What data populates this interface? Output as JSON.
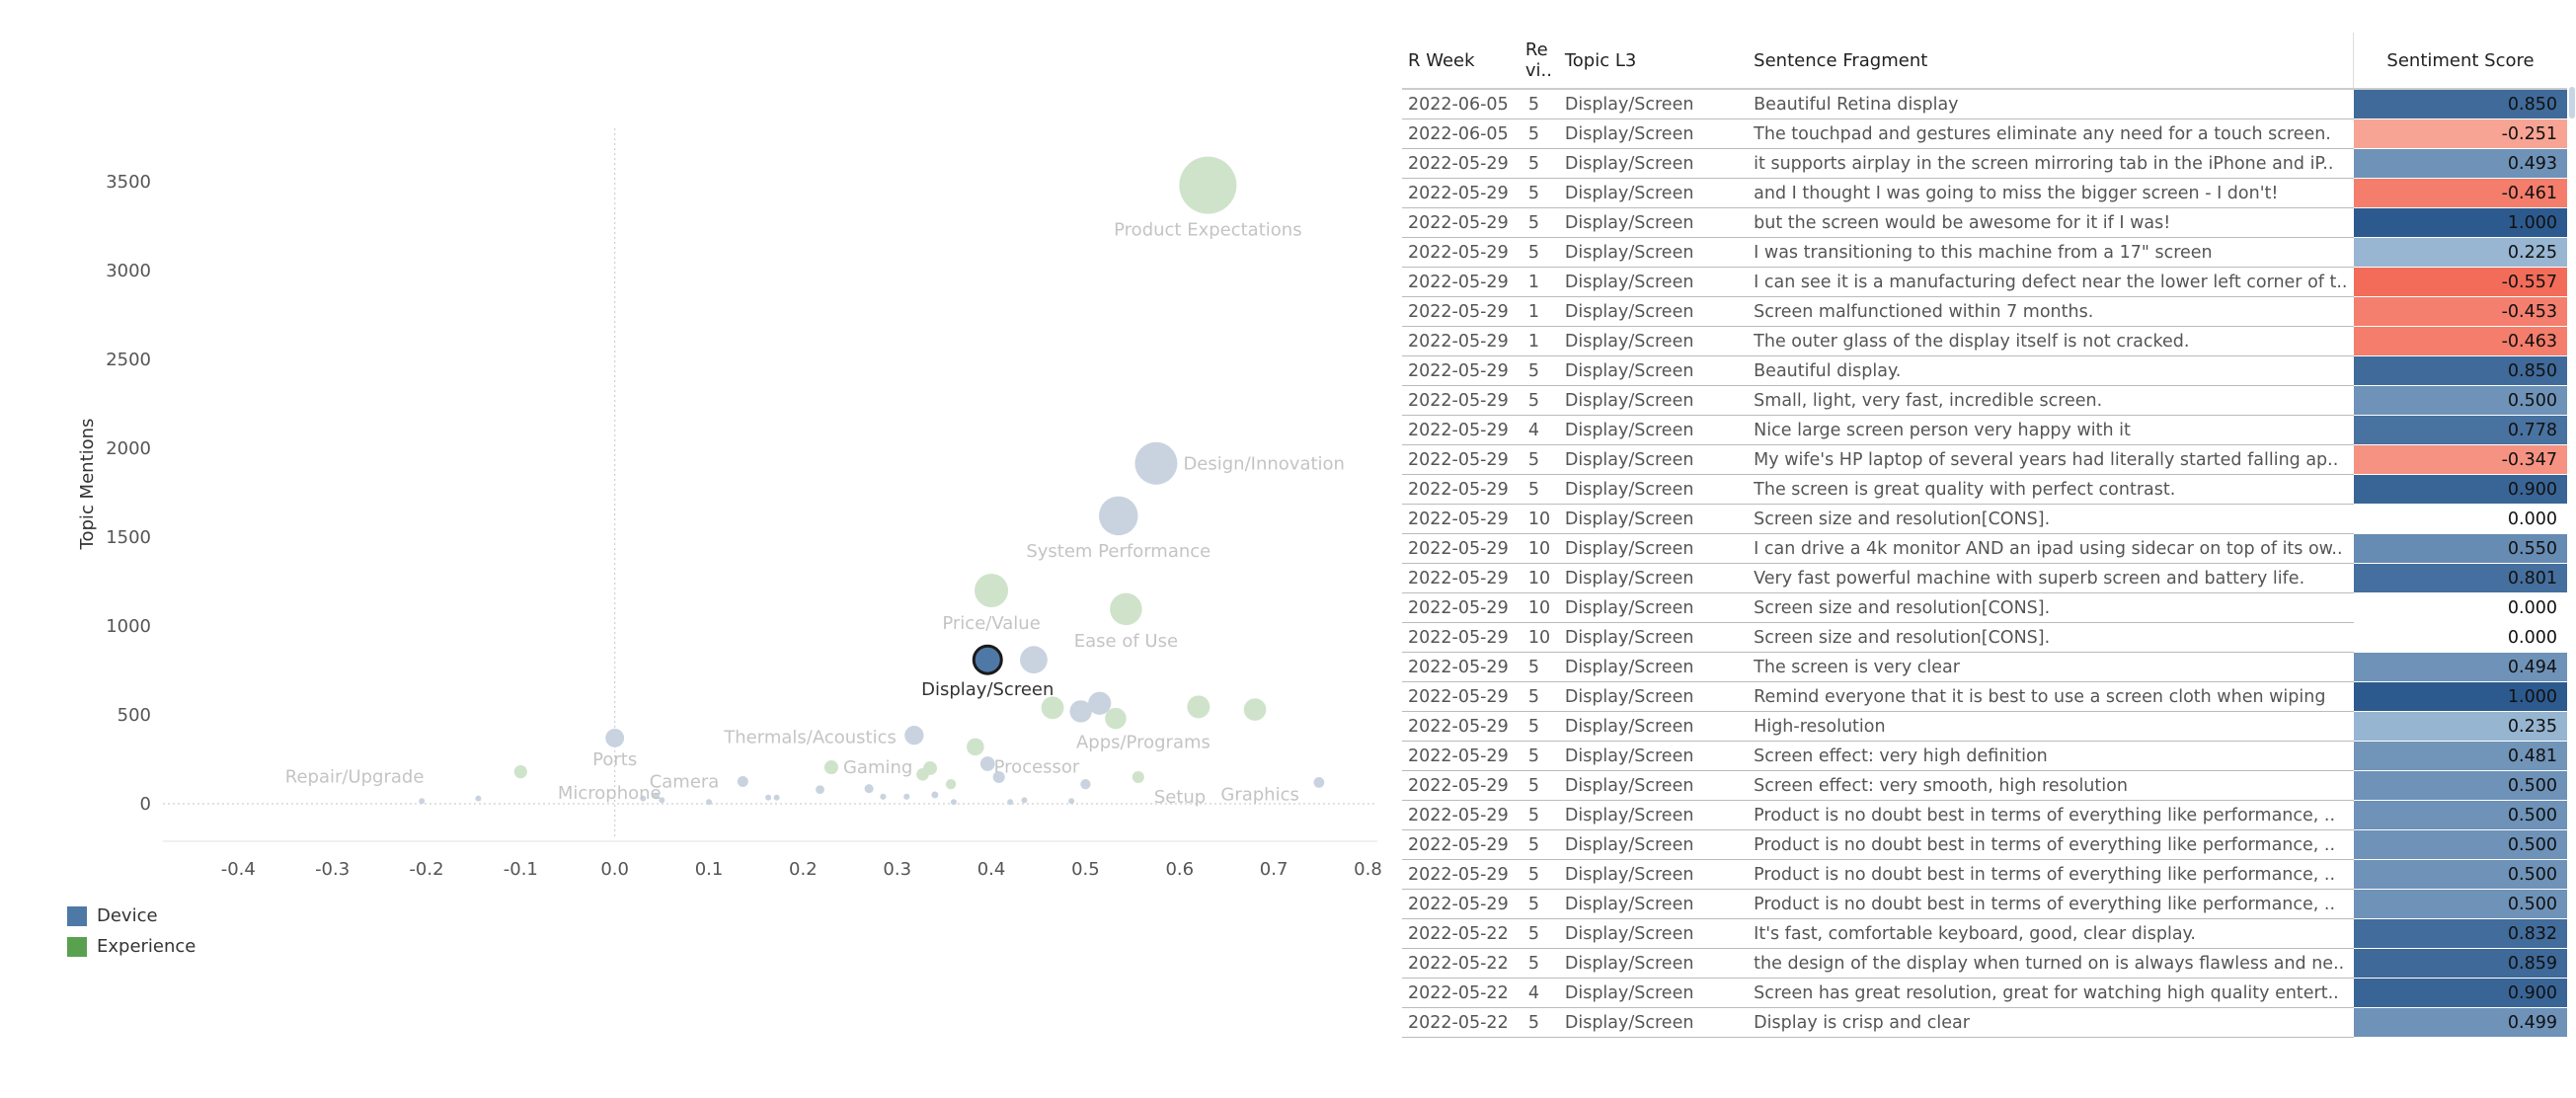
{
  "chart_data": {
    "type": "scatter",
    "title": "",
    "xlabel": "",
    "ylabel": "Topic Mentions",
    "xlim": [
      -0.48,
      0.81
    ],
    "ylim": [
      -200,
      3800
    ],
    "xticks": [
      -0.4,
      -0.3,
      -0.2,
      -0.1,
      0.0,
      0.1,
      0.2,
      0.3,
      0.4,
      0.5,
      0.6,
      0.7,
      0.8
    ],
    "xtick_labels": [
      "-0.4",
      "-0.3",
      "-0.2",
      "-0.1",
      "0.0",
      "0.1",
      "0.2",
      "0.3",
      "0.4",
      "0.5",
      "0.6",
      "0.7",
      "0.8"
    ],
    "yticks": [
      0,
      500,
      1000,
      1500,
      2000,
      2500,
      3000,
      3500
    ],
    "ytick_labels": [
      "0",
      "500",
      "1000",
      "1500",
      "2000",
      "2500",
      "3000",
      "3500"
    ],
    "colors": {
      "device": "#4e79a7",
      "experience": "#59a14f",
      "device_faded": "#c9d3e0",
      "experience_faded": "#cfe3cb",
      "label_faded": "#c4c4c4",
      "label_active": "#333333",
      "axis": "#d0d0d0"
    },
    "legend": [
      {
        "name": "Device",
        "color": "#4e79a7"
      },
      {
        "name": "Experience",
        "color": "#59a14f"
      }
    ],
    "points": [
      {
        "label": "Product Expectations",
        "x": 0.63,
        "y": 3480,
        "size": 3480,
        "group": "experience",
        "labeled": true
      },
      {
        "label": "Design/Innovation",
        "x": 0.575,
        "y": 1915,
        "size": 1915,
        "group": "device",
        "labeled": true
      },
      {
        "label": "System Performance",
        "x": 0.535,
        "y": 1620,
        "size": 1620,
        "group": "device",
        "labeled": true
      },
      {
        "label": "Price/Value",
        "x": 0.4,
        "y": 1200,
        "size": 1200,
        "group": "experience",
        "labeled": true
      },
      {
        "label": "Ease of Use",
        "x": 0.543,
        "y": 1095,
        "size": 1095,
        "group": "experience",
        "labeled": true
      },
      {
        "label": "Display/Screen",
        "x": 0.396,
        "y": 810,
        "size": 810,
        "group": "device",
        "labeled": true,
        "selected": true
      },
      {
        "label": "",
        "x": 0.445,
        "y": 810,
        "size": 800,
        "group": "device",
        "labeled": false
      },
      {
        "label": "",
        "x": 0.515,
        "y": 565,
        "size": 560,
        "group": "device",
        "labeled": false
      },
      {
        "label": "",
        "x": 0.495,
        "y": 520,
        "size": 520,
        "group": "device",
        "labeled": false
      },
      {
        "label": "",
        "x": 0.465,
        "y": 540,
        "size": 540,
        "group": "experience",
        "labeled": false
      },
      {
        "label": "Apps/Programs",
        "x": 0.532,
        "y": 480,
        "size": 480,
        "group": "experience",
        "labeled": true
      },
      {
        "label": "",
        "x": 0.62,
        "y": 545,
        "size": 545,
        "group": "experience",
        "labeled": false
      },
      {
        "label": "",
        "x": 0.68,
        "y": 530,
        "size": 530,
        "group": "experience",
        "labeled": false
      },
      {
        "label": "Thermals/Acoustics",
        "x": 0.318,
        "y": 385,
        "size": 385,
        "group": "device",
        "labeled": true
      },
      {
        "label": "Ports",
        "x": 0.0,
        "y": 370,
        "size": 370,
        "group": "device",
        "labeled": true
      },
      {
        "label": "Processor",
        "x": 0.383,
        "y": 320,
        "size": 320,
        "group": "experience",
        "labeled": true
      },
      {
        "label": "",
        "x": 0.396,
        "y": 225,
        "size": 225,
        "group": "device",
        "labeled": false
      },
      {
        "label": "",
        "x": 0.408,
        "y": 150,
        "size": 150,
        "group": "device",
        "labeled": false
      },
      {
        "label": "Gaming",
        "x": 0.23,
        "y": 205,
        "size": 205,
        "group": "experience",
        "labeled": true
      },
      {
        "label": "",
        "x": 0.335,
        "y": 200,
        "size": 200,
        "group": "experience",
        "labeled": false
      },
      {
        "label": "",
        "x": 0.327,
        "y": 165,
        "size": 165,
        "group": "experience",
        "labeled": false
      },
      {
        "label": "",
        "x": 0.357,
        "y": 110,
        "size": 110,
        "group": "experience",
        "labeled": false
      },
      {
        "label": "Setup",
        "x": 0.556,
        "y": 150,
        "size": 150,
        "group": "experience",
        "labeled": true
      },
      {
        "label": "Graphics",
        "x": 0.748,
        "y": 120,
        "size": 120,
        "group": "device",
        "labeled": true
      },
      {
        "label": "",
        "x": 0.5,
        "y": 110,
        "size": 110,
        "group": "device",
        "labeled": false
      },
      {
        "label": "Camera",
        "x": 0.136,
        "y": 125,
        "size": 125,
        "group": "device",
        "labeled": true
      },
      {
        "label": "",
        "x": -0.1,
        "y": 180,
        "size": 180,
        "group": "experience",
        "labeled": false
      },
      {
        "label": "Repair/Upgrade",
        "x": -0.145,
        "y": 30,
        "size": 30,
        "group": "device",
        "labeled": true
      },
      {
        "label": "Microphone",
        "x": 0.044,
        "y": 45,
        "size": 45,
        "group": "device",
        "labeled": true
      },
      {
        "label": "",
        "x": 0.03,
        "y": 30,
        "size": 30,
        "group": "device",
        "labeled": false
      },
      {
        "label": "",
        "x": 0.05,
        "y": 20,
        "size": 20,
        "group": "device",
        "labeled": false
      },
      {
        "label": "",
        "x": 0.163,
        "y": 35,
        "size": 35,
        "group": "device",
        "labeled": false
      },
      {
        "label": "",
        "x": 0.172,
        "y": 35,
        "size": 35,
        "group": "device",
        "labeled": false
      },
      {
        "label": "",
        "x": 0.218,
        "y": 80,
        "size": 80,
        "group": "device",
        "labeled": false
      },
      {
        "label": "",
        "x": 0.27,
        "y": 85,
        "size": 85,
        "group": "device",
        "labeled": false
      },
      {
        "label": "",
        "x": 0.285,
        "y": 40,
        "size": 40,
        "group": "device",
        "labeled": false
      },
      {
        "label": "",
        "x": 0.31,
        "y": 40,
        "size": 40,
        "group": "device",
        "labeled": false
      },
      {
        "label": "",
        "x": 0.34,
        "y": 50,
        "size": 50,
        "group": "device",
        "labeled": false
      },
      {
        "label": "",
        "x": 0.36,
        "y": 10,
        "size": 10,
        "group": "device",
        "labeled": false
      },
      {
        "label": "",
        "x": 0.42,
        "y": 10,
        "size": 10,
        "group": "device",
        "labeled": false
      },
      {
        "label": "",
        "x": 0.435,
        "y": 20,
        "size": 20,
        "group": "device",
        "labeled": false
      },
      {
        "label": "",
        "x": 0.485,
        "y": 15,
        "size": 15,
        "group": "device",
        "labeled": false
      },
      {
        "label": "",
        "x": -0.205,
        "y": 15,
        "size": 15,
        "group": "device",
        "labeled": false
      },
      {
        "label": "",
        "x": 0.1,
        "y": 10,
        "size": 10,
        "group": "device",
        "labeled": false
      }
    ]
  },
  "table": {
    "columns": [
      "R Week",
      "Re vi..",
      "Topic L3",
      "Sentence Fragment",
      "Sentiment Score"
    ],
    "rows": [
      [
        "2022-06-05",
        "5",
        "Display/Screen",
        "Beautiful Retina display",
        "0.850"
      ],
      [
        "2022-06-05",
        "5",
        "Display/Screen",
        "The touchpad and gestures eliminate any need for a touch screen.",
        "-0.251"
      ],
      [
        "2022-05-29",
        "5",
        "Display/Screen",
        "it supports airplay in the screen mirroring tab in the iPhone and iP..",
        "0.493"
      ],
      [
        "2022-05-29",
        "5",
        "Display/Screen",
        "and I thought I was going to miss the bigger screen - I don't!",
        "-0.461"
      ],
      [
        "2022-05-29",
        "5",
        "Display/Screen",
        "but the screen would be awesome for it if I was!",
        "1.000"
      ],
      [
        "2022-05-29",
        "5",
        "Display/Screen",
        "I was transitioning to this machine from a 17\" screen",
        "0.225"
      ],
      [
        "2022-05-29",
        "1",
        "Display/Screen",
        "I can see it is a manufacturing defect near the lower left corner of t..",
        "-0.557"
      ],
      [
        "2022-05-29",
        "1",
        "Display/Screen",
        "Screen malfunctioned within 7 months.",
        "-0.453"
      ],
      [
        "2022-05-29",
        "1",
        "Display/Screen",
        "The outer glass of the display itself is not cracked.",
        "-0.463"
      ],
      [
        "2022-05-29",
        "5",
        "Display/Screen",
        "Beautiful display.",
        "0.850"
      ],
      [
        "2022-05-29",
        "5",
        "Display/Screen",
        "Small, light, very fast, incredible screen.",
        "0.500"
      ],
      [
        "2022-05-29",
        "4",
        "Display/Screen",
        "Nice large screen person very happy with it",
        "0.778"
      ],
      [
        "2022-05-29",
        "5",
        "Display/Screen",
        "My wife's HP laptop of several years had literally started falling ap..",
        "-0.347"
      ],
      [
        "2022-05-29",
        "5",
        "Display/Screen",
        "The screen is great quality with perfect contrast.",
        "0.900"
      ],
      [
        "2022-05-29",
        "10",
        "Display/Screen",
        "Screen size and resolution[CONS].",
        "0.000"
      ],
      [
        "2022-05-29",
        "10",
        "Display/Screen",
        "I can drive a 4k monitor AND an ipad using sidecar on top of its ow..",
        "0.550"
      ],
      [
        "2022-05-29",
        "10",
        "Display/Screen",
        "Very fast powerful machine with superb screen and battery life.",
        "0.801"
      ],
      [
        "2022-05-29",
        "10",
        "Display/Screen",
        "Screen size and resolution[CONS].",
        "0.000"
      ],
      [
        "2022-05-29",
        "10",
        "Display/Screen",
        "Screen size and resolution[CONS].",
        "0.000"
      ],
      [
        "2022-05-29",
        "5",
        "Display/Screen",
        "The screen is very clear",
        "0.494"
      ],
      [
        "2022-05-29",
        "5",
        "Display/Screen",
        "Remind everyone that it is best to use a screen cloth when wiping",
        "1.000"
      ],
      [
        "2022-05-29",
        "5",
        "Display/Screen",
        "High-resolution",
        "0.235"
      ],
      [
        "2022-05-29",
        "5",
        "Display/Screen",
        "Screen effect: very high definition",
        "0.481"
      ],
      [
        "2022-05-29",
        "5",
        "Display/Screen",
        "Screen effect: very smooth, high resolution",
        "0.500"
      ],
      [
        "2022-05-29",
        "5",
        "Display/Screen",
        "Product is no doubt best in terms of everything like performance, ..",
        "0.500"
      ],
      [
        "2022-05-29",
        "5",
        "Display/Screen",
        "Product is no doubt best in terms of everything like performance, ..",
        "0.500"
      ],
      [
        "2022-05-29",
        "5",
        "Display/Screen",
        "Product is no doubt best in terms of everything like performance, ..",
        "0.500"
      ],
      [
        "2022-05-29",
        "5",
        "Display/Screen",
        "Product is no doubt best in terms of everything like performance, ..",
        "0.500"
      ],
      [
        "2022-05-22",
        "5",
        "Display/Screen",
        "It's fast, comfortable keyboard, good, clear display.",
        "0.832"
      ],
      [
        "2022-05-22",
        "5",
        "Display/Screen",
        "the design of the display when turned on is always flawless and ne..",
        "0.859"
      ],
      [
        "2022-05-22",
        "4",
        "Display/Screen",
        "Screen has great resolution, great for watching high quality entert..",
        "0.900"
      ],
      [
        "2022-05-22",
        "5",
        "Display/Screen",
        "Display is crisp and clear",
        "0.499"
      ]
    ]
  }
}
